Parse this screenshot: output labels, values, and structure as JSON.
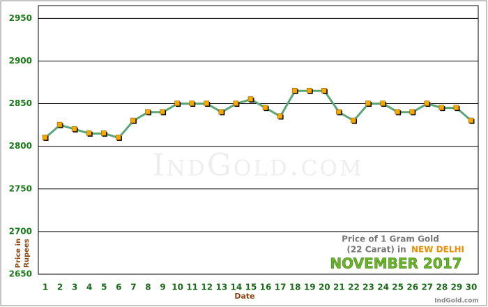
{
  "chart_data": {
    "type": "line",
    "title_lines": [
      "Price of 1 Gram Gold",
      "(22 Carat) in"
    ],
    "location": "NEW DELHI",
    "period": "NOVEMBER 2017",
    "watermark": "IndGold.com",
    "credit": "IndGold.com",
    "y_label": [
      "Price in",
      "Rupees"
    ],
    "x_label": "Date",
    "categories": [
      "1",
      "2",
      "3",
      "4",
      "5",
      "6",
      "7",
      "8",
      "9",
      "10",
      "11",
      "12",
      "13",
      "14",
      "15",
      "16",
      "17",
      "18",
      "19",
      "20",
      "21",
      "22",
      "23",
      "24",
      "25",
      "26",
      "27",
      "28",
      "29",
      "30"
    ],
    "series": [
      {
        "color": "#5aa677",
        "marker_color": "#f5a800",
        "values": [
          2810,
          2825,
          2820,
          2815,
          2815,
          2810,
          2830,
          2840,
          2840,
          2850,
          2850,
          2850,
          2840,
          2850,
          2855,
          2845,
          2835,
          2865,
          2865,
          2865,
          2840,
          2830,
          2850,
          2850,
          2840,
          2840,
          2850,
          2845,
          2845,
          2830
        ]
      }
    ],
    "ylim": [
      2650,
      2965
    ],
    "yticks": [
      2650,
      2700,
      2750,
      2800,
      2850,
      2900,
      2950
    ],
    "grid": true
  }
}
